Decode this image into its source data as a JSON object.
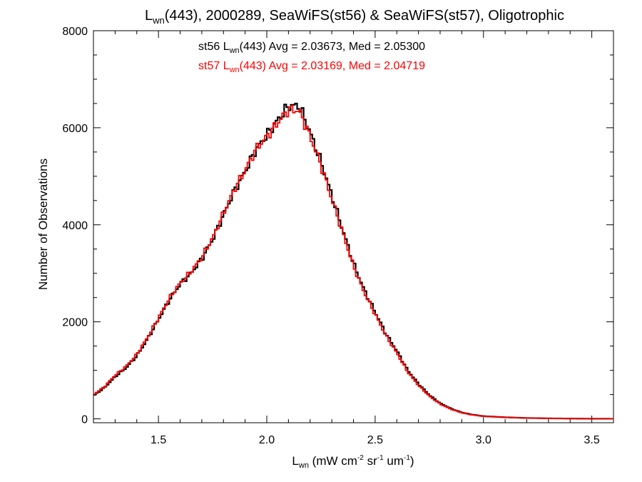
{
  "chart_data": {
    "type": "line",
    "step": true,
    "title": {
      "main": "L",
      "sub": "wn",
      "rest": "(443), 2000289, SeaWiFS(st56) & SeaWiFS(st57), Oligotrophic"
    },
    "xlabel": {
      "main": "L",
      "sub": "wn",
      "p1": " (mW cm",
      "sup1": "-2",
      "p2": " sr",
      "sup2": "-1",
      "p3": " um",
      "sup3": "-1",
      "p4": ")"
    },
    "ylabel": "Number of Observations",
    "xlim": [
      1.2,
      3.6
    ],
    "ylim": [
      -80,
      8000
    ],
    "xticks": [
      1.5,
      2.0,
      2.5,
      3.0,
      3.5
    ],
    "xtick_labels": [
      "1.5",
      "2.0",
      "2.5",
      "3.0",
      "3.5"
    ],
    "yticks": [
      0,
      2000,
      4000,
      6000,
      8000
    ],
    "ytick_labels": [
      "0",
      "2000",
      "4000",
      "6000",
      "8000"
    ],
    "annotations": [
      {
        "pre": "st56 L",
        "sub": "wn",
        "post": "(443) Avg = 2.03673, Med = 2.05300",
        "color": "#000000"
      },
      {
        "pre": "st57 L",
        "sub": "wn",
        "post": "(443) Avg = 2.03169, Med = 2.04719",
        "color": "#ff0000"
      }
    ],
    "series": [
      {
        "name": "st56",
        "color": "#000000",
        "x": [
          1.2,
          1.25,
          1.3,
          1.35,
          1.4,
          1.45,
          1.5,
          1.55,
          1.6,
          1.65,
          1.7,
          1.75,
          1.8,
          1.85,
          1.9,
          1.95,
          2.0,
          2.05,
          2.1,
          2.15,
          2.2,
          2.25,
          2.3,
          2.35,
          2.4,
          2.45,
          2.5,
          2.55,
          2.6,
          2.65,
          2.7,
          2.75,
          2.8,
          2.85,
          2.9,
          2.95,
          3.0,
          3.1,
          3.2,
          3.3,
          3.4,
          3.5,
          3.6
        ],
        "y": [
          480,
          640,
          870,
          1050,
          1300,
          1650,
          2050,
          2450,
          2780,
          3000,
          3300,
          3700,
          4200,
          4700,
          5100,
          5550,
          5850,
          6150,
          6450,
          6450,
          5900,
          5300,
          4600,
          3900,
          3200,
          2650,
          2200,
          1750,
          1400,
          1000,
          720,
          490,
          320,
          210,
          130,
          85,
          55,
          32,
          18,
          10,
          6,
          3,
          2
        ]
      },
      {
        "name": "st57",
        "color": "#ff0000",
        "x": [
          1.2,
          1.25,
          1.3,
          1.35,
          1.4,
          1.45,
          1.5,
          1.55,
          1.6,
          1.65,
          1.7,
          1.75,
          1.8,
          1.85,
          1.9,
          1.95,
          2.0,
          2.05,
          2.1,
          2.15,
          2.2,
          2.25,
          2.3,
          2.35,
          2.4,
          2.45,
          2.5,
          2.55,
          2.6,
          2.65,
          2.7,
          2.75,
          2.8,
          2.85,
          2.9,
          2.95,
          3.0,
          3.1,
          3.2,
          3.3,
          3.4,
          3.5,
          3.6
        ],
        "y": [
          500,
          660,
          900,
          1080,
          1330,
          1680,
          2080,
          2480,
          2800,
          3030,
          3330,
          3730,
          4230,
          4730,
          5120,
          5560,
          5820,
          6100,
          6380,
          6350,
          5820,
          5230,
          4530,
          3840,
          3150,
          2600,
          2160,
          1710,
          1360,
          970,
          690,
          470,
          305,
          200,
          125,
          80,
          52,
          30,
          17,
          9,
          5,
          3,
          2
        ]
      }
    ]
  }
}
